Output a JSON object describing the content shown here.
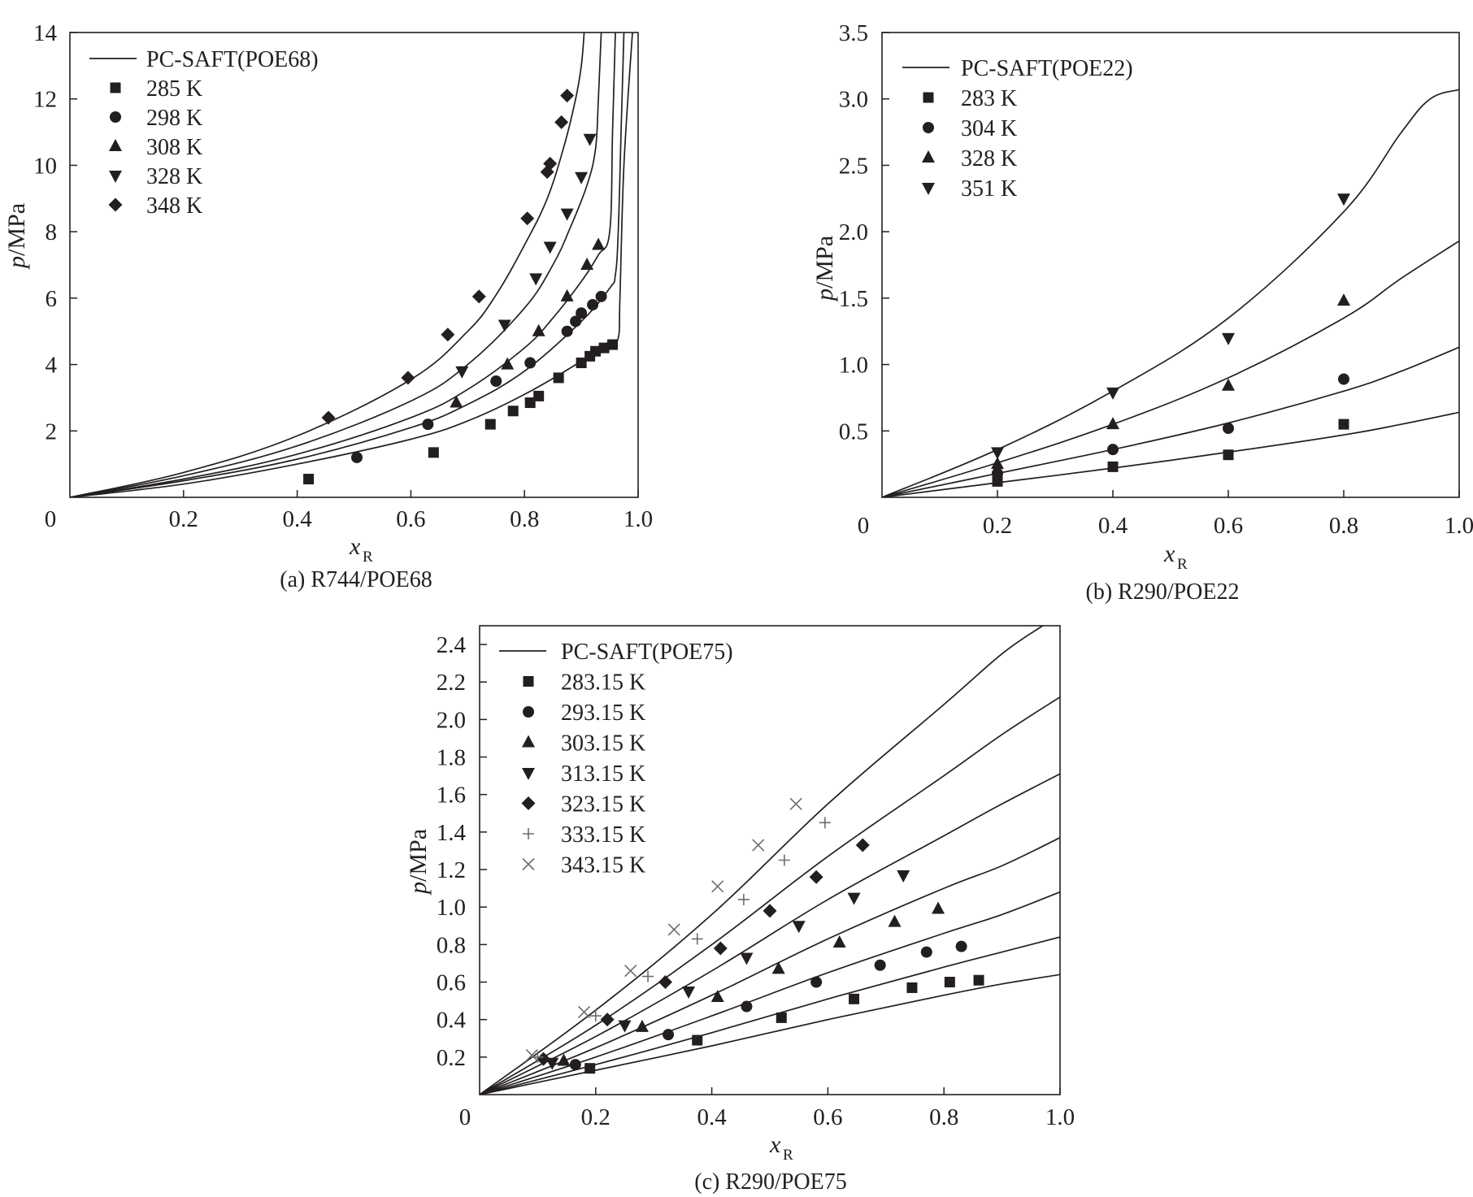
{
  "figure": {
    "panels": [
      {
        "id": "a",
        "caption": "(a) R744/POE68",
        "legend_title": "PC-SAFT(POE68)"
      },
      {
        "id": "b",
        "caption": "(b) R290/POE22",
        "legend_title": "PC-SAFT(POE22)"
      },
      {
        "id": "c",
        "caption": "(c) R290/POE75",
        "legend_title": "PC-SAFT(POE75)"
      }
    ]
  },
  "chart_data": [
    {
      "type": "scatter",
      "title": "(a) R744/POE68",
      "xlabel": "x_R",
      "xlabel_main": "x",
      "xlabel_sub": "R",
      "ylabel": "p/MPa",
      "ylabel_main": "p",
      "ylabel_rest": "/MPa",
      "xlim": [
        0,
        1.0
      ],
      "ylim": [
        0,
        14
      ],
      "x_ticks": [
        0.2,
        0.4,
        0.6,
        0.8,
        1.0
      ],
      "x_tick_labels": [
        "0.2",
        "0.4",
        "0.6",
        "0.8",
        "1.0"
      ],
      "y_ticks": [
        2,
        4,
        6,
        8,
        10,
        12,
        14
      ],
      "y_tick_labels": [
        "2",
        "4",
        "6",
        "8",
        "10",
        "12",
        "14"
      ],
      "origin_label": "0",
      "legend": {
        "position": "top-left",
        "line_label": "PC-SAFT(POE68)"
      },
      "series": [
        {
          "name": "285 K",
          "marker": "square",
          "x": [
            0.42,
            0.64,
            0.74,
            0.78,
            0.81,
            0.825,
            0.86,
            0.9,
            0.915,
            0.925,
            0.94,
            0.955
          ],
          "y": [
            0.55,
            1.35,
            2.2,
            2.6,
            2.85,
            3.05,
            3.6,
            4.05,
            4.25,
            4.4,
            4.5,
            4.6
          ]
        },
        {
          "name": "298 K",
          "marker": "circle",
          "x": [
            0.505,
            0.63,
            0.75,
            0.81,
            0.875,
            0.89,
            0.9,
            0.92,
            0.935
          ],
          "y": [
            1.2,
            2.2,
            3.5,
            4.05,
            5.0,
            5.3,
            5.55,
            5.8,
            6.05
          ]
        },
        {
          "name": "308 K",
          "marker": "triangle-up",
          "x": [
            0.68,
            0.77,
            0.825,
            0.875,
            0.91,
            0.93
          ],
          "y": [
            2.85,
            4.0,
            5.0,
            6.05,
            7.0,
            7.6
          ]
        },
        {
          "name": "328 K",
          "marker": "triangle-down",
          "x": [
            0.69,
            0.765,
            0.82,
            0.845,
            0.875,
            0.9,
            0.915
          ],
          "y": [
            3.8,
            5.2,
            6.6,
            7.55,
            8.55,
            9.65,
            10.8
          ]
        },
        {
          "name": "348 K",
          "marker": "diamond",
          "x": [
            0.455,
            0.595,
            0.665,
            0.72,
            0.805,
            0.84,
            0.845,
            0.865,
            0.875
          ],
          "y": [
            2.4,
            3.6,
            4.9,
            6.05,
            8.4,
            9.8,
            10.05,
            11.3,
            12.1
          ]
        }
      ],
      "model_curves": [
        {
          "name": "PC-SAFT 285 K",
          "x": [
            0,
            0.2,
            0.4,
            0.6,
            0.7,
            0.8,
            0.9,
            0.95,
            0.965,
            0.968,
            0.975,
            0.99
          ],
          "y": [
            0,
            0.4,
            1.0,
            1.75,
            2.3,
            3.1,
            4.1,
            4.7,
            4.8,
            6.0,
            10.0,
            14.0
          ]
        },
        {
          "name": "PC-SAFT 298 K",
          "x": [
            0,
            0.2,
            0.4,
            0.6,
            0.7,
            0.8,
            0.9,
            0.95,
            0.96,
            0.965,
            0.97,
            0.975
          ],
          "y": [
            0,
            0.5,
            1.15,
            2.1,
            2.8,
            3.8,
            5.3,
            6.3,
            6.7,
            8.0,
            11.0,
            14.0
          ]
        },
        {
          "name": "PC-SAFT 308 K",
          "x": [
            0,
            0.2,
            0.4,
            0.6,
            0.7,
            0.8,
            0.85,
            0.9,
            0.93,
            0.95,
            0.955,
            0.96
          ],
          "y": [
            0,
            0.55,
            1.3,
            2.4,
            3.25,
            4.5,
            5.4,
            6.5,
            7.3,
            8.0,
            11.0,
            14.0
          ]
        },
        {
          "name": "PC-SAFT 328 K",
          "x": [
            0,
            0.2,
            0.4,
            0.6,
            0.7,
            0.8,
            0.85,
            0.88,
            0.91,
            0.925,
            0.93,
            0.935
          ],
          "y": [
            0,
            0.65,
            1.55,
            2.9,
            4.0,
            5.7,
            7.0,
            8.1,
            9.4,
            10.5,
            12.0,
            14.0
          ]
        },
        {
          "name": "PC-SAFT 348 K",
          "x": [
            0,
            0.2,
            0.4,
            0.6,
            0.7,
            0.75,
            0.8,
            0.84,
            0.87,
            0.89,
            0.9,
            0.905
          ],
          "y": [
            0,
            0.75,
            1.85,
            3.55,
            5.0,
            6.1,
            7.6,
            9.0,
            10.6,
            12.0,
            13.0,
            14.0
          ]
        }
      ]
    },
    {
      "type": "scatter",
      "title": "(b) R290/POE22",
      "xlabel": "x_R",
      "xlabel_main": "x",
      "xlabel_sub": "R",
      "ylabel": "p/MPa",
      "ylabel_main": "p",
      "ylabel_rest": "/MPa",
      "xlim": [
        0,
        1.0
      ],
      "ylim": [
        0,
        3.5
      ],
      "x_ticks": [
        0.2,
        0.4,
        0.6,
        0.8,
        1.0
      ],
      "x_tick_labels": [
        "0.2",
        "0.4",
        "0.6",
        "0.8",
        "1.0"
      ],
      "y_ticks": [
        0.5,
        1.0,
        1.5,
        2.0,
        2.5,
        3.0,
        3.5
      ],
      "y_tick_labels": [
        "0.5",
        "1.0",
        "1.5",
        "2.0",
        "2.5",
        "3.0",
        "3.5"
      ],
      "origin_label": "0",
      "legend": {
        "position": "top-left",
        "line_label": "PC-SAFT(POE22)"
      },
      "series": [
        {
          "name": "283 K",
          "marker": "square",
          "x": [
            0.2,
            0.4,
            0.6,
            0.8
          ],
          "y": [
            0.12,
            0.23,
            0.32,
            0.55
          ]
        },
        {
          "name": "304 K",
          "marker": "circle",
          "x": [
            0.2,
            0.4,
            0.6,
            0.8
          ],
          "y": [
            0.18,
            0.36,
            0.52,
            0.89
          ]
        },
        {
          "name": "328 K",
          "marker": "triangle-up",
          "x": [
            0.2,
            0.4,
            0.6,
            0.8
          ],
          "y": [
            0.25,
            0.55,
            0.84,
            1.48
          ]
        },
        {
          "name": "351 K",
          "marker": "triangle-down",
          "x": [
            0.2,
            0.4,
            0.6,
            0.8
          ],
          "y": [
            0.34,
            0.79,
            1.2,
            2.25
          ]
        }
      ],
      "model_curves": [
        {
          "name": "PC-SAFT 283 K",
          "x": [
            0,
            0.2,
            0.4,
            0.6,
            0.8,
            0.9,
            1.0
          ],
          "y": [
            0,
            0.11,
            0.22,
            0.34,
            0.47,
            0.55,
            0.64
          ]
        },
        {
          "name": "PC-SAFT 304 K",
          "x": [
            0,
            0.2,
            0.4,
            0.6,
            0.8,
            0.9,
            1.0
          ],
          "y": [
            0,
            0.18,
            0.36,
            0.56,
            0.8,
            0.95,
            1.13
          ]
        },
        {
          "name": "PC-SAFT 328 K",
          "x": [
            0,
            0.2,
            0.4,
            0.6,
            0.8,
            0.9,
            1.0
          ],
          "y": [
            0,
            0.26,
            0.55,
            0.9,
            1.35,
            1.65,
            1.93
          ]
        },
        {
          "name": "PC-SAFT 351 K",
          "x": [
            0,
            0.2,
            0.4,
            0.6,
            0.8,
            0.9,
            0.95,
            1.0
          ],
          "y": [
            0,
            0.36,
            0.8,
            1.35,
            2.15,
            2.75,
            3.0,
            3.07
          ]
        }
      ]
    },
    {
      "type": "scatter",
      "title": "(c) R290/POE75",
      "xlabel": "x_R",
      "xlabel_main": "x",
      "xlabel_sub": "R",
      "ylabel": "p/MPa",
      "ylabel_main": "p",
      "ylabel_rest": "/MPa",
      "xlim": [
        0,
        1.0
      ],
      "ylim": [
        0,
        2.5
      ],
      "x_ticks": [
        0.2,
        0.4,
        0.6,
        0.8,
        1.0
      ],
      "x_tick_labels": [
        "0.2",
        "0.4",
        "0.6",
        "0.8",
        "1.0"
      ],
      "y_ticks": [
        0.2,
        0.4,
        0.6,
        0.8,
        1.0,
        1.2,
        1.4,
        1.6,
        1.8,
        2.0,
        2.2,
        2.4
      ],
      "y_tick_labels": [
        "0.2",
        "0.4",
        "0.6",
        "0.8",
        "1.0",
        "1.2",
        "1.4",
        "1.6",
        "1.8",
        "2.0",
        "2.2",
        "2.4"
      ],
      "origin_label": "0",
      "legend": {
        "position": "top-left",
        "line_label": "PC-SAFT(POE75)"
      },
      "series": [
        {
          "name": "283.15 K",
          "marker": "square",
          "x": [
            0.19,
            0.375,
            0.52,
            0.645,
            0.745,
            0.81,
            0.86
          ],
          "y": [
            0.14,
            0.29,
            0.41,
            0.51,
            0.57,
            0.6,
            0.61
          ]
        },
        {
          "name": "293.15 K",
          "marker": "circle",
          "x": [
            0.165,
            0.325,
            0.46,
            0.58,
            0.69,
            0.77,
            0.83
          ],
          "y": [
            0.16,
            0.32,
            0.47,
            0.6,
            0.69,
            0.76,
            0.79
          ]
        },
        {
          "name": "303.15 K",
          "marker": "triangle-up",
          "x": [
            0.145,
            0.28,
            0.41,
            0.515,
            0.62,
            0.715,
            0.79
          ],
          "y": [
            0.18,
            0.36,
            0.52,
            0.67,
            0.81,
            0.92,
            0.99
          ]
        },
        {
          "name": "313.15 K",
          "marker": "triangle-down",
          "x": [
            0.125,
            0.25,
            0.36,
            0.46,
            0.55,
            0.645,
            0.73
          ],
          "y": [
            0.17,
            0.37,
            0.55,
            0.73,
            0.9,
            1.05,
            1.17
          ]
        },
        {
          "name": "323.15 K",
          "marker": "diamond",
          "x": [
            0.11,
            0.22,
            0.32,
            0.415,
            0.5,
            0.58,
            0.66
          ],
          "y": [
            0.19,
            0.4,
            0.6,
            0.78,
            0.98,
            1.16,
            1.33
          ]
        },
        {
          "name": "333.15 K",
          "marker": "plus",
          "x": [
            0.1,
            0.2,
            0.29,
            0.375,
            0.455,
            0.525,
            0.595
          ],
          "y": [
            0.2,
            0.42,
            0.63,
            0.83,
            1.04,
            1.25,
            1.45
          ]
        },
        {
          "name": "343.15 K",
          "marker": "cross",
          "x": [
            0.09,
            0.18,
            0.26,
            0.335,
            0.41,
            0.48,
            0.545
          ],
          "y": [
            0.21,
            0.44,
            0.66,
            0.88,
            1.11,
            1.33,
            1.55
          ]
        }
      ],
      "model_curves": [
        {
          "name": "PC-SAFT 283.15 K",
          "x": [
            0,
            0.2,
            0.4,
            0.6,
            0.8,
            0.9,
            1.0
          ],
          "y": [
            0,
            0.13,
            0.26,
            0.4,
            0.53,
            0.59,
            0.64
          ]
        },
        {
          "name": "PC-SAFT 293.15 K",
          "x": [
            0,
            0.2,
            0.4,
            0.6,
            0.8,
            0.9,
            1.0
          ],
          "y": [
            0,
            0.16,
            0.33,
            0.51,
            0.68,
            0.76,
            0.84
          ]
        },
        {
          "name": "PC-SAFT 303.15 K",
          "x": [
            0,
            0.2,
            0.4,
            0.6,
            0.8,
            0.9,
            1.0
          ],
          "y": [
            0,
            0.2,
            0.42,
            0.65,
            0.86,
            0.96,
            1.08
          ]
        },
        {
          "name": "PC-SAFT 313.15 K",
          "x": [
            0,
            0.2,
            0.4,
            0.6,
            0.8,
            0.9,
            1.0
          ],
          "y": [
            0,
            0.25,
            0.53,
            0.83,
            1.1,
            1.22,
            1.37
          ]
        },
        {
          "name": "PC-SAFT 323.15 K",
          "x": [
            0,
            0.2,
            0.4,
            0.6,
            0.8,
            0.9,
            1.0
          ],
          "y": [
            0,
            0.31,
            0.66,
            1.04,
            1.38,
            1.55,
            1.71
          ]
        },
        {
          "name": "PC-SAFT 333.15 K",
          "x": [
            0,
            0.2,
            0.4,
            0.6,
            0.8,
            0.9,
            1.0
          ],
          "y": [
            0,
            0.37,
            0.8,
            1.27,
            1.7,
            1.92,
            2.12
          ]
        },
        {
          "name": "PC-SAFT 343.15 K",
          "x": [
            0,
            0.2,
            0.4,
            0.6,
            0.8,
            0.9,
            0.97
          ],
          "y": [
            0,
            0.45,
            0.96,
            1.55,
            2.08,
            2.35,
            2.5
          ]
        }
      ]
    }
  ]
}
